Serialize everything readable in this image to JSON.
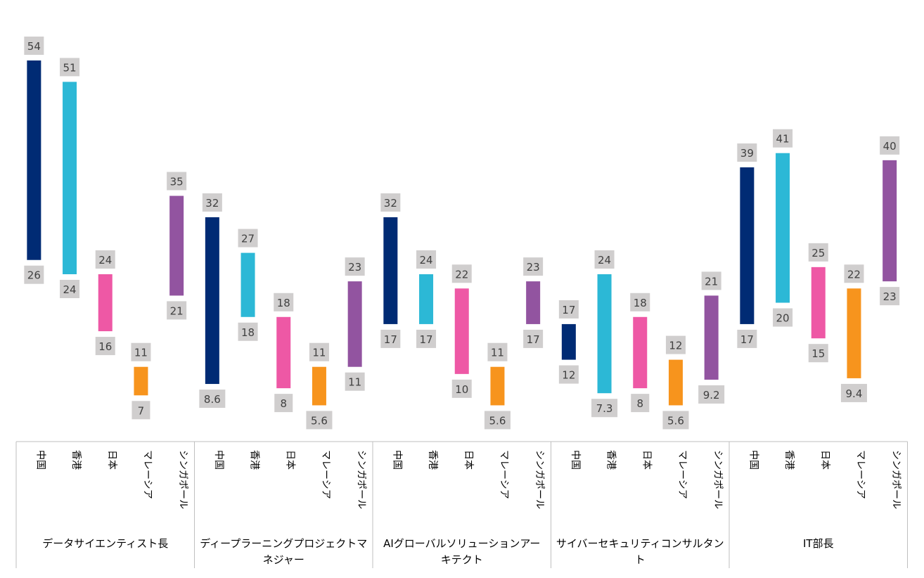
{
  "chart_data": {
    "type": "floating-bar",
    "title": "",
    "ylabel": "",
    "ylim": [
      0,
      60
    ],
    "groups": [
      {
        "name": "データサイエンティスト長",
        "bars": [
          {
            "category": "中国",
            "low": 26,
            "high": 54,
            "low_label": "26",
            "high_label": "54"
          },
          {
            "category": "香港",
            "low": 24,
            "high": 51,
            "low_label": "24",
            "high_label": "51"
          },
          {
            "category": "日本",
            "low": 16,
            "high": 24,
            "low_label": "16",
            "high_label": "24"
          },
          {
            "category": "マレーシア",
            "low": 7,
            "high": 11,
            "low_label": "7",
            "high_label": "11"
          },
          {
            "category": "シンガポール",
            "low": 21,
            "high": 35,
            "low_label": "21",
            "high_label": "35"
          }
        ]
      },
      {
        "name": "ディープラーニングプロジェクトマネジャー",
        "bars": [
          {
            "category": "中国",
            "low": 8.6,
            "high": 32,
            "low_label": "8.6",
            "high_label": "32"
          },
          {
            "category": "香港",
            "low": 18,
            "high": 27,
            "low_label": "18",
            "high_label": "27"
          },
          {
            "category": "日本",
            "low": 8,
            "high": 18,
            "low_label": "8",
            "high_label": "18"
          },
          {
            "category": "マレーシア",
            "low": 5.6,
            "high": 11,
            "low_label": "5.6",
            "high_label": "11"
          },
          {
            "category": "シンガポール",
            "low": 11,
            "high": 23,
            "low_label": "11",
            "high_label": "23"
          }
        ]
      },
      {
        "name": "AIグローバルソリューションアーキテクト",
        "bars": [
          {
            "category": "中国",
            "low": 17,
            "high": 32,
            "low_label": "17",
            "high_label": "32"
          },
          {
            "category": "香港",
            "low": 17,
            "high": 24,
            "low_label": "17",
            "high_label": "24"
          },
          {
            "category": "日本",
            "low": 10,
            "high": 22,
            "low_label": "10",
            "high_label": "22"
          },
          {
            "category": "マレーシア",
            "low": 5.6,
            "high": 11,
            "low_label": "5.6",
            "high_label": "11"
          },
          {
            "category": "シンガポール",
            "low": 17,
            "high": 23,
            "low_label": "17",
            "high_label": "23"
          }
        ]
      },
      {
        "name": "サイバーセキュリティコンサルタント",
        "bars": [
          {
            "category": "中国",
            "low": 12,
            "high": 17,
            "low_label": "12",
            "high_label": "17"
          },
          {
            "category": "香港",
            "low": 7.3,
            "high": 24,
            "low_label": "7.3",
            "high_label": "24"
          },
          {
            "category": "日本",
            "low": 8,
            "high": 18,
            "low_label": "8",
            "high_label": "18"
          },
          {
            "category": "マレーシア",
            "low": 5.6,
            "high": 12,
            "low_label": "5.6",
            "high_label": "12"
          },
          {
            "category": "シンガポール",
            "low": 9.2,
            "high": 21,
            "low_label": "9.2",
            "high_label": "21"
          }
        ]
      },
      {
        "name": "IT部長",
        "bars": [
          {
            "category": "中国",
            "low": 17,
            "high": 39,
            "low_label": "17",
            "high_label": "39"
          },
          {
            "category": "香港",
            "low": 20,
            "high": 41,
            "low_label": "20",
            "high_label": "41"
          },
          {
            "category": "日本",
            "low": 15,
            "high": 25,
            "low_label": "15",
            "high_label": "25"
          },
          {
            "category": "マレーシア",
            "low": 9.4,
            "high": 22,
            "low_label": "9.4",
            "high_label": "22"
          },
          {
            "category": "シンガポール",
            "low": 23,
            "high": 40,
            "low_label": "23",
            "high_label": "40"
          }
        ]
      }
    ],
    "category_colors": {
      "中国": "#002b74",
      "香港": "#2cb8d6",
      "日本": "#ee58a5",
      "マレーシア": "#f7941d",
      "シンガポール": "#9254a0"
    },
    "label_box_color": "#d0cece",
    "grid": false,
    "legend": "none"
  }
}
